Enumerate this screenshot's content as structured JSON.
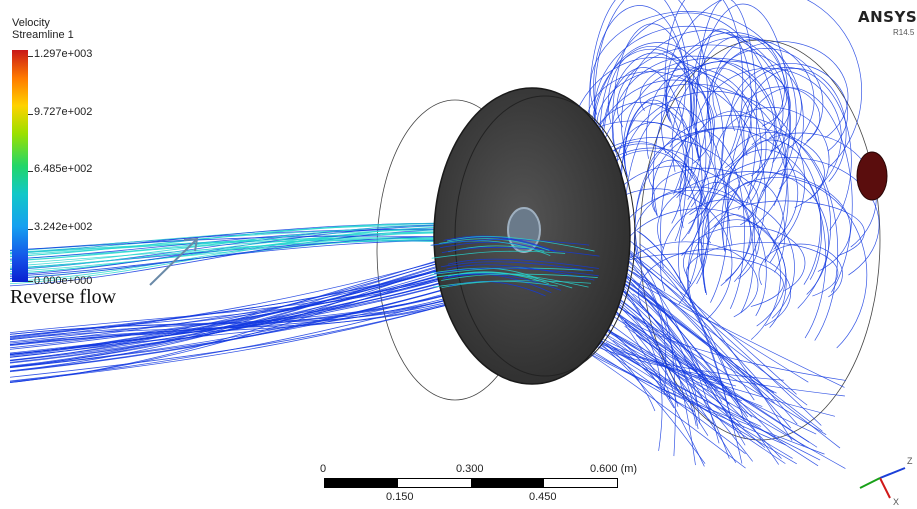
{
  "legend": {
    "title_line1": "Velocity",
    "title_line2": "Streamline 1",
    "ticks": [
      "1.297e+003",
      "9.727e+002",
      "6.485e+002",
      "3.242e+002",
      "0.000e+000"
    ]
  },
  "brand": {
    "name": "ANSYS",
    "version": "R14.5"
  },
  "annotation": {
    "text": "Reverse flow"
  },
  "scale": {
    "top_labels": [
      "0",
      "0.300",
      "0.600 (m)"
    ],
    "bottom_labels": [
      "0.150",
      "0.450"
    ]
  },
  "triad": {
    "axes": [
      "Z",
      "X"
    ]
  },
  "colors": {
    "streamline_blue": "#1238e0",
    "streamline_cyan": "#27d6d0",
    "disk": "#3a3a3a",
    "probe": "#5a0d0d"
  }
}
